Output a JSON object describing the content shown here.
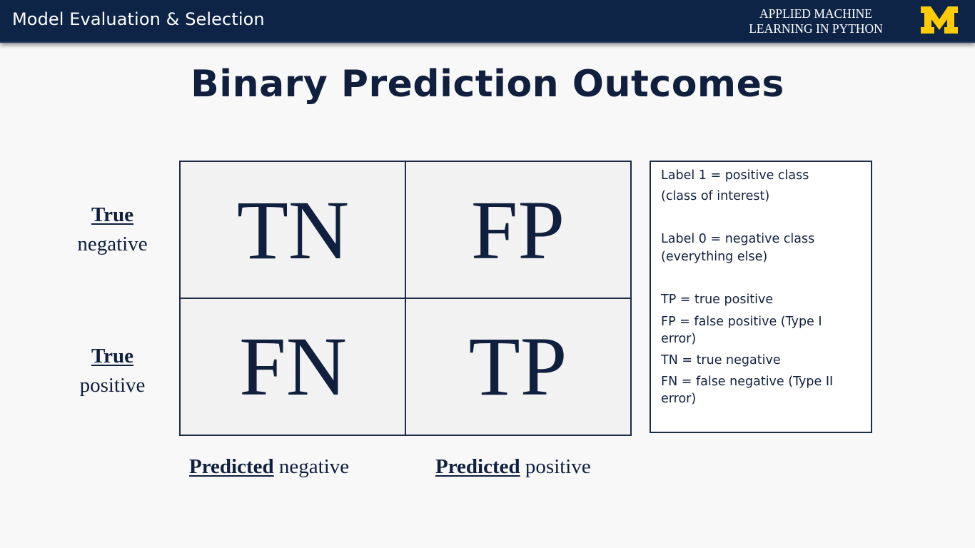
{
  "header": {
    "title": "Model Evaluation & Selection",
    "course_line1": "APPLIED MACHINE",
    "course_line2": "LEARNING IN PYTHON",
    "logo_letter": "M",
    "bar_color": "#0d2447",
    "logo_color": "#ffcb05"
  },
  "slide": {
    "title": "Binary Prediction Outcomes"
  },
  "matrix": {
    "cells": {
      "tn": "TN",
      "fp": "FP",
      "fn": "FN",
      "tp": "TP"
    },
    "row_labels": [
      {
        "bold": "True",
        "plain": "negative"
      },
      {
        "bold": "True",
        "plain": "positive"
      }
    ],
    "column_labels": [
      {
        "bold": "Predicted",
        "plain": "negative"
      },
      {
        "bold": "Predicted",
        "plain": "positive"
      }
    ]
  },
  "legend": {
    "label1_line1": "Label 1 = positive class",
    "label1_line2": "(class of interest)",
    "label0_line1": "Label 0 = negative class",
    "label0_line2": "(everything else)",
    "tp_def": "TP = true positive",
    "fp_def_line1": "FP = false positive (Type I",
    "fp_def_line2": "error)",
    "tn_def": "TN = true negative",
    "fn_def_line1": "FN = false negative  (Type II",
    "fn_def_line2": "error)"
  }
}
